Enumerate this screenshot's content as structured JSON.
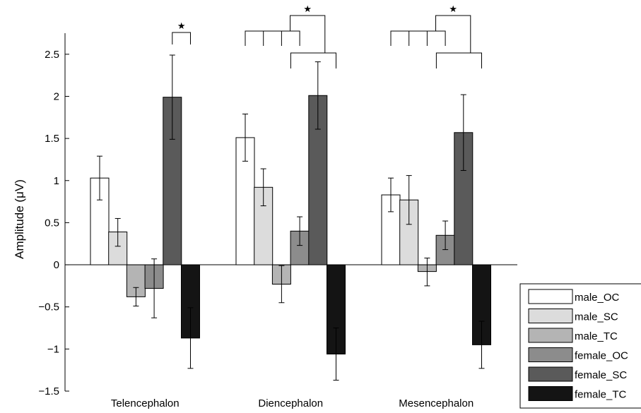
{
  "chart_data": {
    "type": "bar",
    "title": "",
    "xlabel": "",
    "ylabel": "Amplitude (μV)",
    "ylim": [
      -1.5,
      2.75
    ],
    "yticks": [
      -1.5,
      -1,
      -0.5,
      0,
      0.5,
      1,
      1.5,
      2,
      2.5
    ],
    "ytick_labels": [
      "−1.5",
      "−1",
      "−0.5",
      "0",
      "0.5",
      "1",
      "1.5",
      "2",
      "2.5"
    ],
    "grid": false,
    "legend_position": "bottom-right, outside plot",
    "categories": [
      "Telencephalon",
      "Diencephalon",
      "Mesencephalon"
    ],
    "series": [
      {
        "name": "male_OC",
        "color": "#ffffff",
        "values": [
          1.03,
          1.51,
          0.83
        ],
        "err_low": [
          0.77,
          1.23,
          0.63
        ],
        "err_high": [
          1.29,
          1.79,
          1.03
        ]
      },
      {
        "name": "male_SC",
        "color": "#dcdcdc",
        "values": [
          0.39,
          0.92,
          0.77
        ],
        "err_low": [
          0.22,
          0.7,
          0.48
        ],
        "err_high": [
          0.55,
          1.14,
          1.06
        ]
      },
      {
        "name": "male_TC",
        "color": "#b4b4b4",
        "values": [
          -0.38,
          -0.23,
          -0.08
        ],
        "err_low": [
          -0.49,
          -0.45,
          -0.25
        ],
        "err_high": [
          -0.27,
          -0.01,
          0.08
        ]
      },
      {
        "name": "female_OC",
        "color": "#8c8c8c",
        "values": [
          -0.28,
          0.4,
          0.35
        ],
        "err_low": [
          -0.63,
          0.23,
          0.18
        ],
        "err_high": [
          0.07,
          0.57,
          0.52
        ]
      },
      {
        "name": "female_SC",
        "color": "#5a5a5a",
        "values": [
          1.99,
          2.01,
          1.57
        ],
        "err_low": [
          1.49,
          1.61,
          1.12
        ],
        "err_high": [
          2.49,
          2.41,
          2.02
        ]
      },
      {
        "name": "female_TC",
        "color": "#141414",
        "values": [
          -0.87,
          -1.06,
          -0.95
        ],
        "err_low": [
          -1.23,
          -1.37,
          -1.23
        ],
        "err_high": [
          -0.51,
          -0.75,
          -0.67
        ]
      }
    ],
    "annotations": [
      {
        "text": "★",
        "category": "Telencephalon"
      },
      {
        "text": "★",
        "category": "Diencephalon"
      },
      {
        "text": "★",
        "category": "Mesencephalon"
      }
    ]
  }
}
